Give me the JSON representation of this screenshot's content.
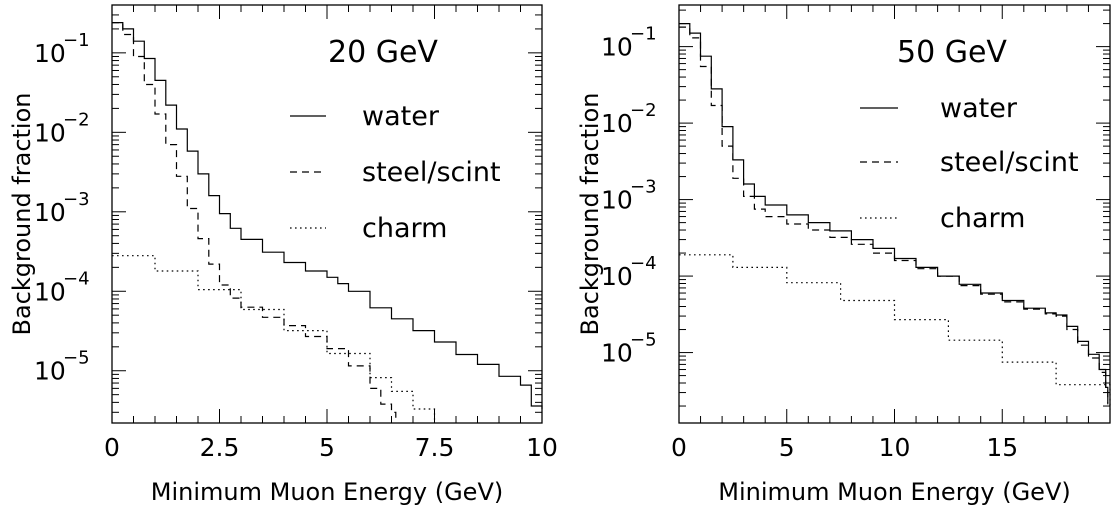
{
  "chart_data": [
    {
      "type": "line",
      "title": "20 GeV",
      "xlabel": "Minimum Muon Energy (GeV)",
      "ylabel": "Background fraction",
      "xlim": [
        0,
        10
      ],
      "ylim": [
        2.2e-06,
        0.4
      ],
      "y_scale": "log",
      "x_ticks": [
        "0",
        "2.5",
        "5",
        "7.5",
        "10"
      ],
      "y_ticks": [
        {
          "base": "10",
          "exp": "−1"
        },
        {
          "base": "10",
          "exp": "−2"
        },
        {
          "base": "10",
          "exp": "−3"
        },
        {
          "base": "10",
          "exp": "−4"
        },
        {
          "base": "10",
          "exp": "−5"
        }
      ],
      "grid": false,
      "legend_position": "top-right",
      "series": [
        {
          "name": "water",
          "line_style": "solid",
          "x": [
            0,
            0.25,
            0.5,
            0.75,
            1.0,
            1.25,
            1.5,
            1.75,
            2.0,
            2.25,
            2.5,
            2.75,
            3.0,
            3.5,
            4.0,
            4.5,
            5.0,
            5.25,
            5.5,
            6.0,
            6.5,
            7.0,
            7.5,
            8.0,
            8.5,
            9.0,
            9.5,
            9.75,
            10.0
          ],
          "y": [
            0.24,
            0.2,
            0.14,
            0.085,
            0.045,
            0.022,
            0.011,
            0.0058,
            0.003,
            0.0016,
            0.00095,
            0.00062,
            0.00045,
            0.00031,
            0.00023,
            0.00018,
            0.00015,
            0.000125,
            0.0001,
            6.2e-05,
            4.5e-05,
            3.2e-05,
            2.3e-05,
            1.6e-05,
            1.2e-05,
            8.5e-06,
            6.6e-06,
            3.6e-06,
            3.3e-06
          ]
        },
        {
          "name": "steel/scint",
          "line_style": "dashed",
          "x": [
            0,
            0.25,
            0.5,
            0.75,
            1.0,
            1.25,
            1.5,
            1.75,
            2.0,
            2.25,
            2.5,
            2.75,
            3.0,
            3.5,
            4.0,
            4.5,
            5.0,
            5.5,
            6.0,
            6.25,
            6.5,
            6.6
          ],
          "y": [
            0.24,
            0.17,
            0.09,
            0.04,
            0.017,
            0.007,
            0.0028,
            0.0011,
            0.00046,
            0.00022,
            0.00012,
            8.2e-05,
            6.3e-05,
            4.7e-05,
            3.7e-05,
            2.7e-05,
            1.9e-05,
            1.15e-05,
            6e-06,
            3.8e-06,
            3e-06,
            2.2e-06
          ]
        },
        {
          "name": "charm",
          "line_style": "dotted",
          "x": [
            0,
            1.0,
            2.0,
            3.0,
            4.0,
            5.0,
            6.0,
            6.5,
            7.0,
            7.5
          ],
          "y": [
            0.00028,
            0.00018,
            0.000105,
            5.9e-05,
            3.2e-05,
            1.65e-05,
            8.2e-06,
            5.5e-06,
            3.3e-06,
            2.2e-06
          ]
        }
      ]
    },
    {
      "type": "line",
      "title": "50 GeV",
      "xlabel": "Minimum Muon Energy (GeV)",
      "ylabel": "Background fraction",
      "xlim": [
        0,
        20
      ],
      "ylim": [
        1.2e-06,
        0.35
      ],
      "y_scale": "log",
      "x_ticks": [
        "0",
        "5",
        "10",
        "15"
      ],
      "y_ticks": [
        {
          "base": "10",
          "exp": "−1"
        },
        {
          "base": "10",
          "exp": "−2"
        },
        {
          "base": "10",
          "exp": "−3"
        },
        {
          "base": "10",
          "exp": "−4"
        },
        {
          "base": "10",
          "exp": "−5"
        }
      ],
      "grid": false,
      "legend_position": "top-right",
      "series": [
        {
          "name": "water",
          "line_style": "solid",
          "x": [
            0,
            0.5,
            1.0,
            1.5,
            2.0,
            2.5,
            3.0,
            3.5,
            4.0,
            5.0,
            6.0,
            7.0,
            8.0,
            9.0,
            10.0,
            11.0,
            12.0,
            13.0,
            14.0,
            15.0,
            16.0,
            17.0,
            17.5,
            18.0,
            18.5,
            19.0,
            19.5,
            19.8,
            19.9
          ],
          "y": [
            0.2,
            0.15,
            0.075,
            0.028,
            0.009,
            0.0033,
            0.0016,
            0.0011,
            0.00085,
            0.00063,
            0.0005,
            0.00039,
            0.0003,
            0.00023,
            0.00017,
            0.00013,
            0.0001,
            7.8e-05,
            6e-05,
            4.8e-05,
            3.8e-05,
            3.3e-05,
            3.1e-05,
            2.2e-05,
            1.4e-05,
            9.5e-06,
            6e-06,
            3.5e-06,
            2.2e-06
          ]
        },
        {
          "name": "steel/scint",
          "line_style": "dashed",
          "x": [
            0,
            0.5,
            1.0,
            1.5,
            2.0,
            2.5,
            3.0,
            3.5,
            4.0,
            5.0,
            6.0,
            7.0,
            8.0,
            9.0,
            10.0,
            11.0,
            12.0,
            13.0,
            14.0,
            15.0,
            16.0,
            17.0,
            17.5,
            18.0,
            18.5,
            19.0,
            19.5,
            19.8,
            19.9
          ],
          "y": [
            0.18,
            0.13,
            0.055,
            0.017,
            0.005,
            0.0019,
            0.0011,
            0.00075,
            0.0006,
            0.00048,
            0.0004,
            0.00032,
            0.00026,
            0.0002,
            0.00016,
            0.000125,
            0.0001,
            7.5e-05,
            5.8e-05,
            4.6e-05,
            3.7e-05,
            3.2e-05,
            3e-05,
            2e-05,
            1.25e-05,
            8.5e-06,
            5.5e-06,
            3.4e-06,
            2.1e-06
          ]
        },
        {
          "name": "charm",
          "line_style": "dotted",
          "x": [
            0,
            2.5,
            5.0,
            7.5,
            10.0,
            12.5,
            15.0,
            17.5,
            20.0
          ],
          "y": [
            0.00019,
            0.00013,
            8.2e-05,
            4.8e-05,
            2.7e-05,
            1.45e-05,
            7.5e-06,
            3.8e-06,
            1.8e-06
          ]
        }
      ]
    }
  ]
}
